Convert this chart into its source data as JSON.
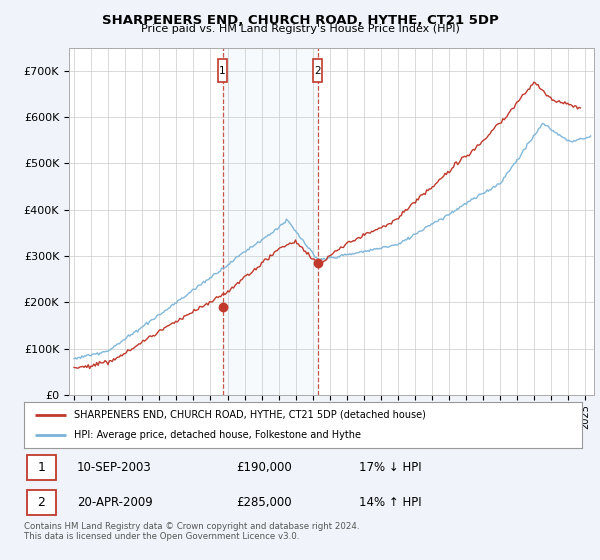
{
  "title": "SHARPENERS END, CHURCH ROAD, HYTHE, CT21 5DP",
  "subtitle": "Price paid vs. HM Land Registry's House Price Index (HPI)",
  "ylim": [
    0,
    750000
  ],
  "yticks": [
    0,
    100000,
    200000,
    300000,
    400000,
    500000,
    600000,
    700000
  ],
  "ytick_labels": [
    "£0",
    "£100K",
    "£200K",
    "£300K",
    "£400K",
    "£500K",
    "£600K",
    "£700K"
  ],
  "hpi_color": "#7ab3d8",
  "price_color": "#c0392b",
  "marker1_date": "10-SEP-2003",
  "marker1_price": 190000,
  "marker1_label": "£190,000",
  "marker1_hpi_pct": "17% ↓ HPI",
  "marker2_date": "20-APR-2009",
  "marker2_price": 285000,
  "marker2_label": "£285,000",
  "marker2_hpi_pct": "14% ↑ HPI",
  "legend_line1": "SHARPENERS END, CHURCH ROAD, HYTHE, CT21 5DP (detached house)",
  "legend_line2": "HPI: Average price, detached house, Folkestone and Hythe",
  "footnote": "Contains HM Land Registry data © Crown copyright and database right 2024.\nThis data is licensed under the Open Government Licence v3.0.",
  "background_color": "#f0f4fa",
  "plot_bg_color": "#ffffff",
  "grid_color": "#cccccc",
  "marker1_x": 2003.71,
  "marker2_x": 2009.29
}
